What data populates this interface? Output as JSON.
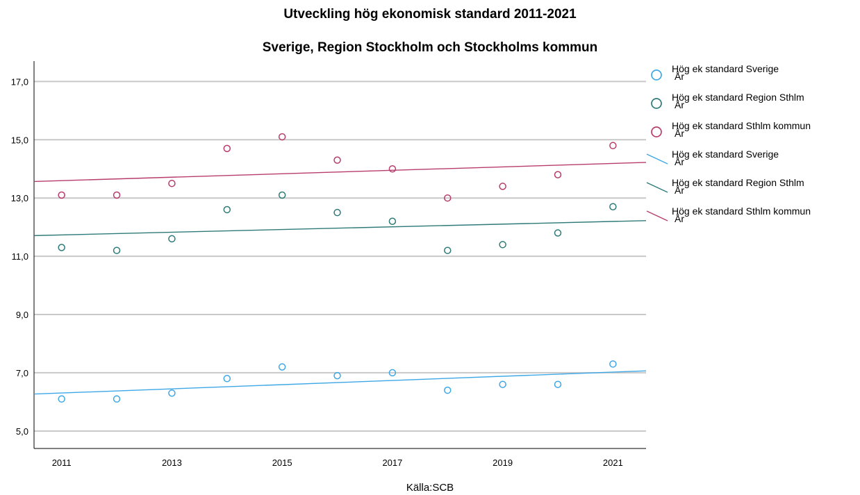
{
  "chart_data": {
    "type": "scatter",
    "title": "Utveckling hög ekonomisk standard 2011-2021",
    "subtitle": "Sverige, Region Stockholm och Stockholms kommun",
    "source": "Källa:SCB",
    "x": [
      2011,
      2012,
      2013,
      2014,
      2015,
      2016,
      2017,
      2018,
      2019,
      2020,
      2021
    ],
    "x_ticks": [
      "2011",
      "2013",
      "2015",
      "2017",
      "2019",
      "2021"
    ],
    "y_ticks": [
      "5,0",
      "7,0",
      "9,0",
      "11,0",
      "13,0",
      "15,0",
      "17,0"
    ],
    "xlim": [
      2010.5,
      2021.6
    ],
    "ylim": [
      4.4,
      17.7
    ],
    "grid": "horizontal",
    "legend_position": "right",
    "series": [
      {
        "name": "Hög ek standard Sverige",
        "color": "#3ea7e6",
        "values": [
          6.1,
          6.1,
          6.3,
          6.8,
          7.2,
          6.9,
          7.0,
          6.4,
          6.6,
          6.6,
          7.3
        ]
      },
      {
        "name": "Hög ek standard Region Sthlm",
        "color": "#2e7a78",
        "values": [
          11.3,
          11.2,
          11.6,
          12.6,
          13.1,
          12.5,
          12.2,
          11.2,
          11.4,
          11.8,
          12.7
        ]
      },
      {
        "name": "Hög ek standard Sthlm kommun",
        "color": "#b73c6b",
        "values": [
          13.1,
          13.1,
          13.5,
          14.7,
          15.1,
          14.3,
          14.0,
          13.0,
          13.4,
          13.8,
          14.8
        ]
      }
    ],
    "legend": [
      {
        "name": "Hög ek standard Sverige",
        "sub": "År",
        "kind": "marker",
        "series": 0
      },
      {
        "name": "Hög ek standard Region Sthlm",
        "sub": "År",
        "kind": "marker",
        "series": 1
      },
      {
        "name": "Hög ek standard Sthlm kommun",
        "sub": "År",
        "kind": "marker",
        "series": 2
      },
      {
        "name": "Hög ek standard Sverige",
        "sub": "År",
        "kind": "line",
        "series": 0
      },
      {
        "name": "Hög ek standard Region Sthlm",
        "sub": "År",
        "kind": "line",
        "series": 1
      },
      {
        "name": "Hög ek standard Sthlm kommun",
        "sub": "År",
        "kind": "line",
        "series": 2
      }
    ]
  }
}
